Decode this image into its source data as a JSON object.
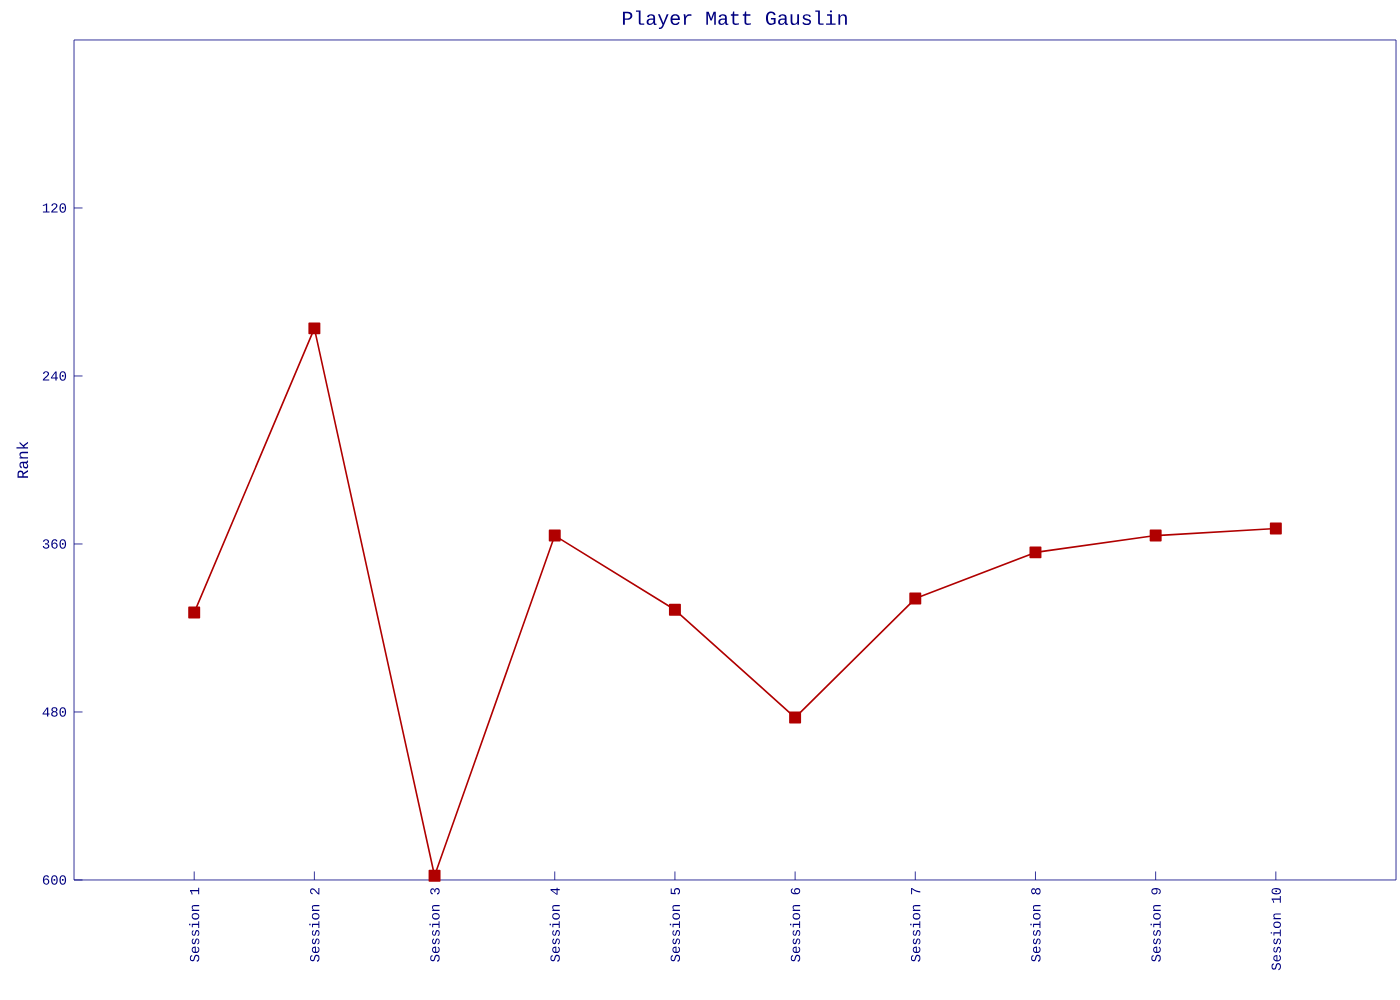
{
  "chart_data": {
    "type": "line",
    "title": "Player Matt Gauslin",
    "ylabel": "Rank",
    "categories": [
      "Session 1",
      "Session 2",
      "Session 3",
      "Session 4",
      "Session 5",
      "Session 6",
      "Session 7",
      "Session 8",
      "Session 9",
      "Session 10"
    ],
    "series": [
      {
        "color": "#b00000",
        "values": [
          409,
          206,
          597,
          354,
          407,
          484,
          399,
          366,
          354,
          349
        ]
      }
    ],
    "ylim": [
      600,
      0
    ],
    "yticks": [
      120,
      240,
      360,
      480,
      600
    ],
    "grid": false,
    "marker": "square",
    "line_style": "solid"
  }
}
